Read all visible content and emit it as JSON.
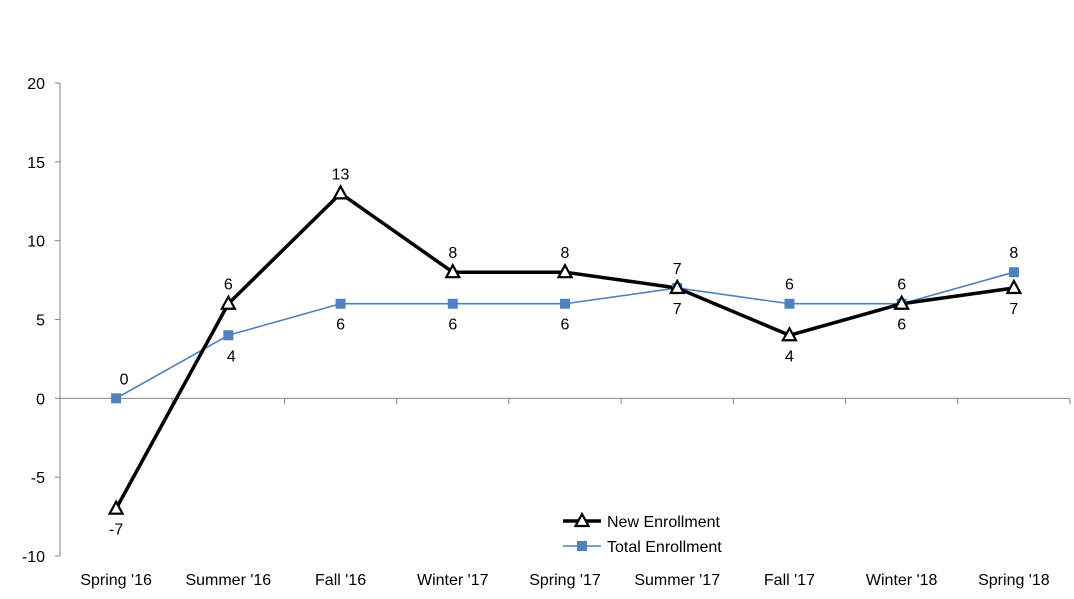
{
  "chart_data": {
    "type": "line",
    "title": "",
    "xlabel": "",
    "ylabel": "",
    "categories": [
      "Spring '16",
      "Summer '16",
      "Fall '16",
      "Winter '17",
      "Spring '17",
      "Summer '17",
      "Fall '17",
      "Winter '18",
      "Spring '18"
    ],
    "ylim": [
      -10,
      20
    ],
    "yticks": [
      -10,
      -5,
      0,
      5,
      10,
      15,
      20
    ],
    "grid": false,
    "legend_position": "bottom-right",
    "series": [
      {
        "name": "New Enrollment",
        "values": [
          -7,
          6,
          13,
          8,
          8,
          7,
          4,
          6,
          7
        ],
        "labels": [
          "-7",
          "6",
          "13",
          "8",
          "8",
          "7",
          "4",
          "6",
          "7"
        ],
        "label_side": [
          "below",
          "above",
          "above",
          "above",
          "above",
          "below",
          "below",
          "below",
          "below"
        ],
        "color": "#000000",
        "marker": "triangle"
      },
      {
        "name": "Total Enrollment",
        "values": [
          0,
          4,
          6,
          6,
          6,
          7,
          6,
          6,
          8
        ],
        "labels": [
          "0",
          "4",
          "6",
          "6",
          "6",
          "7",
          "6",
          "6",
          "8"
        ],
        "label_side": [
          "above",
          "below",
          "below",
          "below",
          "below",
          "above",
          "above",
          "above",
          "above"
        ],
        "color": "#4f81bd",
        "marker": "square"
      }
    ]
  }
}
